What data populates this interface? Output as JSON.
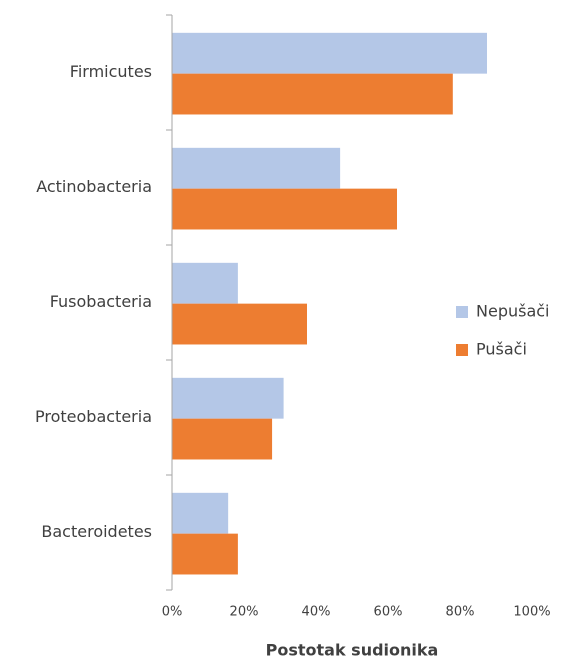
{
  "chart_data": {
    "type": "barh",
    "x_label": "Postotak sudionika",
    "categories": [
      "Firmicutes",
      "Actinobacteria",
      "Fusobacteria",
      "Proteobacteria",
      "Bacteroidetes"
    ],
    "series": [
      {
        "name": "Nepušači",
        "color": "#b4c7e7",
        "values": [
          87.5,
          46.7,
          18.3,
          31,
          15.6
        ]
      },
      {
        "name": "Pušači",
        "color": "#ed7d31",
        "values": [
          78,
          62.5,
          37.5,
          27.8,
          18.3
        ]
      }
    ],
    "xlim": [
      0,
      100
    ],
    "xticks": [
      {
        "value": 0,
        "label": "0%"
      },
      {
        "value": 20,
        "label": "20%"
      },
      {
        "value": 40,
        "label": "40%"
      },
      {
        "value": 60,
        "label": "60%"
      },
      {
        "value": 80,
        "label": "80%"
      },
      {
        "value": 100,
        "label": "100%"
      }
    ],
    "legend": "right",
    "grid": false
  }
}
